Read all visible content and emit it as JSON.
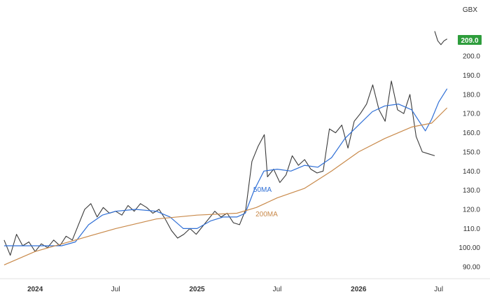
{
  "chart_data": {
    "type": "line",
    "currency_label": "GBX",
    "last_price_label": "209.0",
    "x_tick_labels": [
      "2024",
      "Jul",
      "2025",
      "Jul",
      "2026",
      "Jul"
    ],
    "x_ticks": [
      {
        "date": "2024-01-01",
        "label": "2024",
        "bold": true
      },
      {
        "date": "2024-07-01",
        "label": "Jul",
        "bold": false
      },
      {
        "date": "2025-01-01",
        "label": "2025",
        "bold": true
      },
      {
        "date": "2025-07-01",
        "label": "Jul",
        "bold": false
      },
      {
        "date": "2026-01-01",
        "label": "2026",
        "bold": true
      },
      {
        "date": "2026-07-01",
        "label": "Jul",
        "bold": false
      }
    ],
    "y_tick_labels": [
      "90.00",
      "100.00",
      "110.0",
      "120.0",
      "130.0",
      "140.0",
      "150.0",
      "160.0",
      "170.0",
      "180.0",
      "190.0",
      "200.0"
    ],
    "ylim": [
      86,
      222
    ],
    "xlim": [
      "2023-10-20",
      "2026-08-10"
    ],
    "grid": false,
    "series": [
      {
        "name": "",
        "kind": "price",
        "color": "#3a3a3a",
        "points": [
          [
            "2023-10-23",
            104
          ],
          [
            "2023-11-06",
            96
          ],
          [
            "2023-11-20",
            107
          ],
          [
            "2023-12-04",
            101
          ],
          [
            "2023-12-18",
            103
          ],
          [
            "2024-01-01",
            98
          ],
          [
            "2024-01-15",
            102
          ],
          [
            "2024-01-29",
            100
          ],
          [
            "2024-02-12",
            104
          ],
          [
            "2024-02-26",
            101
          ],
          [
            "2024-03-11",
            106
          ],
          [
            "2024-03-25",
            104
          ],
          [
            "2024-04-08",
            112
          ],
          [
            "2024-04-22",
            120
          ],
          [
            "2024-05-06",
            123
          ],
          [
            "2024-05-20",
            116
          ],
          [
            "2024-06-03",
            121
          ],
          [
            "2024-06-17",
            118
          ],
          [
            "2024-07-01",
            119
          ],
          [
            "2024-07-15",
            117
          ],
          [
            "2024-07-29",
            122
          ],
          [
            "2024-08-12",
            119
          ],
          [
            "2024-08-26",
            123
          ],
          [
            "2024-09-09",
            121
          ],
          [
            "2024-09-23",
            118
          ],
          [
            "2024-10-07",
            120
          ],
          [
            "2024-10-21",
            115
          ],
          [
            "2024-11-04",
            109
          ],
          [
            "2024-11-18",
            105
          ],
          [
            "2024-12-02",
            107
          ],
          [
            "2024-12-16",
            110
          ],
          [
            "2024-12-30",
            107
          ],
          [
            "2025-01-13",
            111
          ],
          [
            "2025-01-27",
            115
          ],
          [
            "2025-02-10",
            119
          ],
          [
            "2025-02-24",
            116
          ],
          [
            "2025-03-10",
            118
          ],
          [
            "2025-03-24",
            113
          ],
          [
            "2025-04-07",
            112
          ],
          [
            "2025-04-21",
            120
          ],
          [
            "2025-05-05",
            145
          ],
          [
            "2025-05-19",
            153
          ],
          [
            "2025-06-02",
            159
          ],
          [
            "2025-06-09",
            137
          ],
          [
            "2025-06-23",
            141
          ],
          [
            "2025-07-07",
            134
          ],
          [
            "2025-07-21",
            138
          ],
          [
            "2025-08-04",
            148
          ],
          [
            "2025-08-18",
            143
          ],
          [
            "2025-09-01",
            146
          ],
          [
            "2025-09-15",
            141
          ],
          [
            "2025-09-29",
            139
          ],
          [
            "2025-10-13",
            140
          ],
          [
            "2025-10-27",
            162
          ],
          [
            "2025-11-10",
            160
          ],
          [
            "2025-11-24",
            164
          ],
          [
            "2025-12-08",
            152
          ],
          [
            "2025-12-22",
            166
          ],
          [
            "2026-01-05",
            170
          ],
          [
            "2026-01-19",
            175
          ],
          [
            "2026-02-02",
            185
          ],
          [
            "2026-02-16",
            172
          ],
          [
            "2026-03-02",
            166
          ],
          [
            "2026-03-16",
            187
          ],
          [
            "2026-03-30",
            172
          ],
          [
            "2026-04-13",
            170
          ],
          [
            "2026-04-27",
            180
          ],
          [
            "2026-05-11",
            158
          ],
          [
            "2026-05-25",
            150
          ],
          [
            "2026-06-08",
            149
          ],
          [
            "2026-06-22",
            148
          ]
        ]
      },
      {
        "name": "",
        "kind": "price",
        "color": "#3a3a3a",
        "points": [
          [
            "2026-06-22",
            213
          ],
          [
            "2026-06-29",
            208
          ],
          [
            "2026-07-06",
            206
          ],
          [
            "2026-07-13",
            208
          ],
          [
            "2026-07-20",
            209
          ]
        ]
      },
      {
        "name": "50MA",
        "kind": "ma",
        "color": "#2f6fd6",
        "label_at": "2025-05-05",
        "points": [
          [
            "2023-10-23",
            101
          ],
          [
            "2023-12-01",
            101
          ],
          [
            "2024-01-15",
            101
          ],
          [
            "2024-03-01",
            101
          ],
          [
            "2024-04-01",
            103
          ],
          [
            "2024-05-01",
            112
          ],
          [
            "2024-06-01",
            117
          ],
          [
            "2024-07-01",
            119
          ],
          [
            "2024-08-15",
            120
          ],
          [
            "2024-10-01",
            119
          ],
          [
            "2024-11-01",
            116
          ],
          [
            "2024-12-01",
            110
          ],
          [
            "2025-01-01",
            110
          ],
          [
            "2025-02-01",
            114
          ],
          [
            "2025-03-01",
            116
          ],
          [
            "2025-04-01",
            116
          ],
          [
            "2025-04-20",
            118
          ],
          [
            "2025-05-10",
            130
          ],
          [
            "2025-06-01",
            140
          ],
          [
            "2025-07-01",
            141
          ],
          [
            "2025-08-01",
            140
          ],
          [
            "2025-09-01",
            143
          ],
          [
            "2025-10-01",
            142
          ],
          [
            "2025-11-01",
            147
          ],
          [
            "2025-12-01",
            157
          ],
          [
            "2026-01-01",
            164
          ],
          [
            "2026-02-01",
            171
          ],
          [
            "2026-03-01",
            174
          ],
          [
            "2026-04-01",
            175
          ],
          [
            "2026-05-01",
            172
          ],
          [
            "2026-06-01",
            161
          ],
          [
            "2026-06-15",
            167
          ],
          [
            "2026-07-01",
            176
          ],
          [
            "2026-07-20",
            183
          ]
        ]
      },
      {
        "name": "200MA",
        "kind": "ma",
        "color": "#c98a4b",
        "label_at": "2025-05-10",
        "points": [
          [
            "2023-10-23",
            91
          ],
          [
            "2024-01-01",
            98
          ],
          [
            "2024-04-01",
            104
          ],
          [
            "2024-07-01",
            110
          ],
          [
            "2024-10-01",
            115
          ],
          [
            "2025-01-01",
            117
          ],
          [
            "2025-04-01",
            118
          ],
          [
            "2025-05-15",
            121
          ],
          [
            "2025-07-01",
            126
          ],
          [
            "2025-09-01",
            131
          ],
          [
            "2025-11-01",
            140
          ],
          [
            "2026-01-01",
            150
          ],
          [
            "2026-03-01",
            157
          ],
          [
            "2026-05-01",
            163
          ],
          [
            "2026-06-15",
            165
          ],
          [
            "2026-07-20",
            173
          ]
        ]
      }
    ]
  },
  "colors": {
    "price_tag_bg": "#2e9d3c",
    "price_tag_text": "#ffffff",
    "axis_text": "#333333",
    "border": "#e1e1e1"
  }
}
